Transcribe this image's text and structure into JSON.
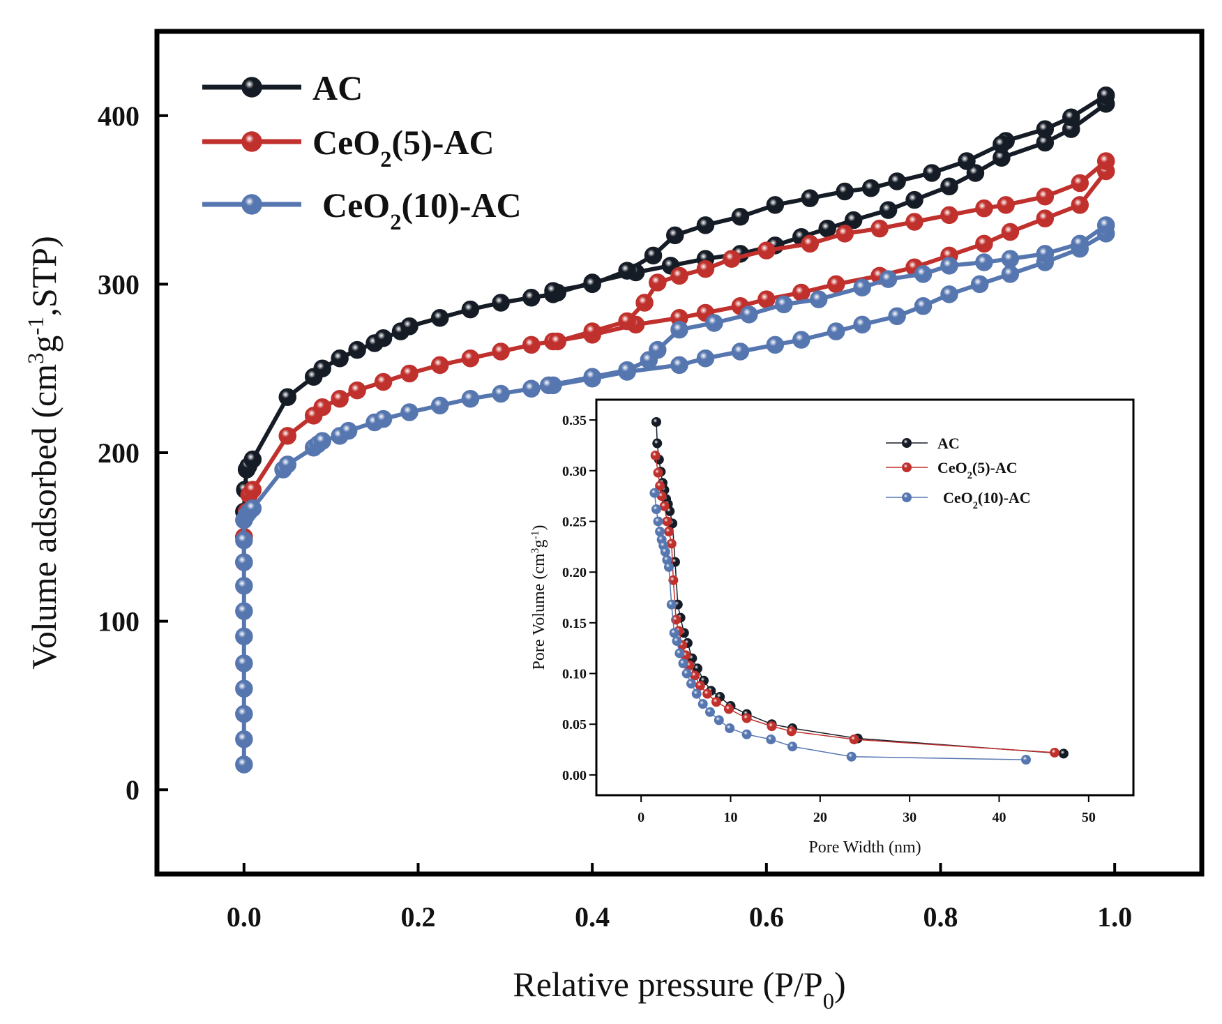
{
  "chart_data": [
    {
      "id": "main",
      "type": "line",
      "title": "",
      "xlabel": "Relative pressure (P/P",
      "xlabel_sub": "0",
      "xlabel_tail": ")",
      "ylabel_parts": [
        "Volume adsorbed (cm",
        "3",
        "g",
        "-1",
        ",STP)"
      ],
      "xlim": [
        -0.1,
        1.1
      ],
      "ylim": [
        -50,
        450
      ],
      "xticks": [
        0.0,
        0.2,
        0.4,
        0.6,
        0.8,
        1.0
      ],
      "xtick_labels": [
        "0.0",
        "0.2",
        "0.4",
        "0.6",
        "0.8",
        "1.0"
      ],
      "yticks": [
        0,
        100,
        200,
        300,
        400
      ],
      "ytick_labels": [
        "0",
        "100",
        "200",
        "300",
        "400"
      ],
      "legend_position": "top-left",
      "series": [
        {
          "name": "AC",
          "legend_label": [
            "AC"
          ],
          "color": "#151c26",
          "adsorption": {
            "x": [
              0.0,
              0.0,
              0.001,
              0.003,
              0.005,
              0.01,
              0.05,
              0.08,
              0.09,
              0.11,
              0.13,
              0.15,
              0.16,
              0.18,
              0.19,
              0.225,
              0.26,
              0.295,
              0.33,
              0.355,
              0.36,
              0.4,
              0.45,
              0.49,
              0.53,
              0.57,
              0.61,
              0.64,
              0.67,
              0.7,
              0.74,
              0.77,
              0.81,
              0.84,
              0.87,
              0.92,
              0.95,
              0.99
            ],
            "y": [
              150,
              165,
              178,
              190,
              192,
              196,
              233,
              245,
              250,
              256,
              261,
              265,
              268,
              272,
              275,
              280,
              285,
              289,
              292,
              294,
              295,
              301,
              307,
              311,
              315,
              318,
              323,
              328,
              333,
              338,
              344,
              350,
              358,
              366,
              375,
              384,
              392,
              407
            ]
          },
          "desorption": {
            "x": [
              0.99,
              0.95,
              0.92,
              0.875,
              0.87,
              0.83,
              0.79,
              0.75,
              0.72,
              0.69,
              0.65,
              0.61,
              0.57,
              0.53,
              0.495,
              0.47,
              0.44,
              0.4,
              0.355
            ],
            "y": [
              412,
              399,
              392,
              385,
              383,
              373,
              366,
              361,
              357,
              355,
              351,
              347,
              340,
              335,
              329,
              317,
              308,
              300,
              296
            ]
          }
        },
        {
          "name": "CeO2(5)-AC",
          "legend_label": [
            "CeO",
            "2",
            "(5)-AC"
          ],
          "color": "#c0302c",
          "adsorption": {
            "x": [
              0.0,
              0.0,
              0.003,
              0.006,
              0.01,
              0.05,
              0.08,
              0.09,
              0.11,
              0.13,
              0.16,
              0.19,
              0.225,
              0.26,
              0.295,
              0.33,
              0.355,
              0.4,
              0.45,
              0.5,
              0.53,
              0.57,
              0.6,
              0.64,
              0.68,
              0.73,
              0.77,
              0.81,
              0.85,
              0.88,
              0.92,
              0.96,
              0.99
            ],
            "y": [
              135,
              150,
              165,
              175,
              178,
              210,
              222,
              227,
              232,
              237,
              242,
              247,
              252,
              256,
              260,
              264,
              266,
              270,
              276,
              280,
              283,
              287,
              291,
              295,
              300,
              305,
              310,
              317,
              324,
              331,
              339,
              347,
              367
            ]
          },
          "desorption": {
            "x": [
              0.99,
              0.96,
              0.92,
              0.875,
              0.85,
              0.81,
              0.77,
              0.73,
              0.69,
              0.65,
              0.6,
              0.56,
              0.53,
              0.5,
              0.475,
              0.46,
              0.44,
              0.4,
              0.36
            ],
            "y": [
              373,
              360,
              352,
              347,
              345,
              341,
              337,
              333,
              330,
              324,
              320,
              315,
              309,
              305,
              301,
              289,
              278,
              272,
              266
            ]
          }
        },
        {
          "name": "CeO2(10)-AC",
          "legend_label": [
            "CeO",
            "2",
            "(10)-AC"
          ],
          "color": "#5676b0",
          "adsorption": {
            "x": [
              0.0,
              0.0,
              0.0,
              0.0,
              0.0,
              0.0,
              0.0,
              0.0,
              0.0,
              0.0,
              0.0,
              0.003,
              0.006,
              0.01,
              0.045,
              0.05,
              0.08,
              0.085,
              0.09,
              0.11,
              0.12,
              0.15,
              0.16,
              0.19,
              0.225,
              0.26,
              0.295,
              0.33,
              0.355,
              0.4,
              0.44,
              0.5,
              0.53,
              0.57,
              0.61,
              0.64,
              0.68,
              0.71,
              0.75,
              0.78,
              0.81,
              0.845,
              0.88,
              0.92,
              0.96,
              0.99
            ],
            "y": [
              15,
              30,
              45,
              60,
              75,
              91,
              106,
              121,
              135,
              148,
              160,
              163,
              165,
              167,
              190,
              193,
              203,
              205,
              207,
              210,
              213,
              218,
              220,
              224,
              228,
              232,
              235,
              238,
              240,
              244,
              248,
              252,
              256,
              260,
              264,
              267,
              272,
              276,
              281,
              287,
              294,
              300,
              306,
              313,
              321,
              330
            ]
          },
          "desorption": {
            "x": [
              0.99,
              0.96,
              0.92,
              0.88,
              0.85,
              0.81,
              0.78,
              0.74,
              0.71,
              0.66,
              0.62,
              0.58,
              0.54,
              0.5,
              0.475,
              0.465,
              0.44,
              0.4,
              0.35
            ],
            "y": [
              335,
              324,
              318,
              315,
              313,
              311,
              306,
              303,
              298,
              291,
              288,
              282,
              277,
              273,
              261,
              255,
              249,
              245,
              240
            ]
          }
        }
      ]
    },
    {
      "id": "inset",
      "type": "line",
      "title": "",
      "xlabel": "Pore Width (nm)",
      "ylabel_parts": [
        "Pore Volume (cm",
        "3",
        "g",
        "-1",
        ")"
      ],
      "xlim": [
        -5,
        55
      ],
      "ylim": [
        -0.02,
        0.37
      ],
      "xticks": [
        0,
        10,
        20,
        30,
        40,
        50
      ],
      "xtick_labels": [
        "0",
        "10",
        "20",
        "30",
        "40",
        "50"
      ],
      "yticks": [
        0.0,
        0.05,
        0.1,
        0.15,
        0.2,
        0.25,
        0.3,
        0.35
      ],
      "ytick_labels": [
        "0.00",
        "0.05",
        "0.10",
        "0.15",
        "0.20",
        "0.25",
        "0.30",
        "0.35"
      ],
      "legend_position": "top-right",
      "series": [
        {
          "name": "AC",
          "legend_label": [
            "AC"
          ],
          "color": "#151c26",
          "x": [
            1.7,
            1.8,
            2.0,
            2.2,
            2.4,
            2.6,
            2.8,
            3.0,
            3.2,
            3.5,
            3.8,
            4.1,
            4.4,
            4.8,
            5.2,
            5.7,
            6.3,
            7.0,
            7.8,
            8.8,
            10.0,
            11.8,
            14.6,
            16.9,
            24.2,
            47.2
          ],
          "y": [
            0.348,
            0.327,
            0.311,
            0.299,
            0.288,
            0.281,
            0.272,
            0.267,
            0.26,
            0.248,
            0.21,
            0.168,
            0.155,
            0.14,
            0.13,
            0.115,
            0.105,
            0.093,
            0.083,
            0.077,
            0.068,
            0.06,
            0.05,
            0.046,
            0.036,
            0.021
          ]
        },
        {
          "name": "CeO2(5)-AC",
          "legend_label": [
            "CeO",
            "2",
            "(5)-AC"
          ],
          "color": "#c0302c",
          "x": [
            1.6,
            1.9,
            2.1,
            2.3,
            2.6,
            2.9,
            3.1,
            3.4,
            3.6,
            3.9,
            4.2,
            4.6,
            5.0,
            5.4,
            6.0,
            6.6,
            7.4,
            8.4,
            9.8,
            11.8,
            14.6,
            16.8,
            23.8,
            46.2
          ],
          "y": [
            0.315,
            0.298,
            0.285,
            0.275,
            0.265,
            0.25,
            0.24,
            0.228,
            0.192,
            0.153,
            0.142,
            0.128,
            0.118,
            0.108,
            0.098,
            0.088,
            0.08,
            0.072,
            0.065,
            0.056,
            0.048,
            0.043,
            0.035,
            0.022
          ]
        },
        {
          "name": "CeO2(10)-AC",
          "legend_label": [
            "CeO",
            "2",
            "(10)-AC"
          ],
          "color": "#5676b0",
          "x": [
            1.5,
            1.7,
            1.9,
            2.1,
            2.3,
            2.5,
            2.7,
            2.9,
            3.1,
            3.4,
            3.7,
            4.0,
            4.3,
            4.7,
            5.1,
            5.6,
            6.2,
            6.9,
            7.7,
            8.7,
            9.9,
            11.8,
            14.5,
            16.9,
            23.5,
            43.0
          ],
          "y": [
            0.278,
            0.262,
            0.25,
            0.24,
            0.232,
            0.226,
            0.22,
            0.212,
            0.205,
            0.168,
            0.14,
            0.132,
            0.12,
            0.11,
            0.1,
            0.09,
            0.08,
            0.07,
            0.062,
            0.054,
            0.046,
            0.04,
            0.035,
            0.028,
            0.018,
            0.015
          ]
        }
      ]
    }
  ]
}
